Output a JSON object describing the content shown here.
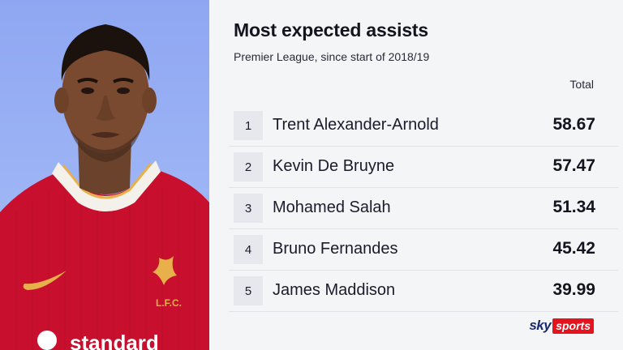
{
  "header": {
    "title": "Most expected assists",
    "subtitle": "Premier League, since start of 2018/19",
    "column_label": "Total"
  },
  "rows": [
    {
      "rank": "1",
      "name": "Trent Alexander-Arnold",
      "value": "58.67"
    },
    {
      "rank": "2",
      "name": "Kevin De Bruyne",
      "value": "57.47"
    },
    {
      "rank": "3",
      "name": "Mohamed Salah",
      "value": "51.34"
    },
    {
      "rank": "4",
      "name": "Bruno Fernandes",
      "value": "45.42"
    },
    {
      "rank": "5",
      "name": "James Maddison",
      "value": "39.99"
    }
  ],
  "photo": {
    "crest_text": "L.F.C.",
    "sponsor_text": "standard"
  },
  "branding": {
    "sky": "sky",
    "sports": "sports"
  },
  "colors": {
    "photo_background": "#9db4f5",
    "shirt_red": "#c8102e",
    "crest_gold": "#e8b04a",
    "brand_red": "#e3141e",
    "brand_navy": "#1a2a6c"
  }
}
